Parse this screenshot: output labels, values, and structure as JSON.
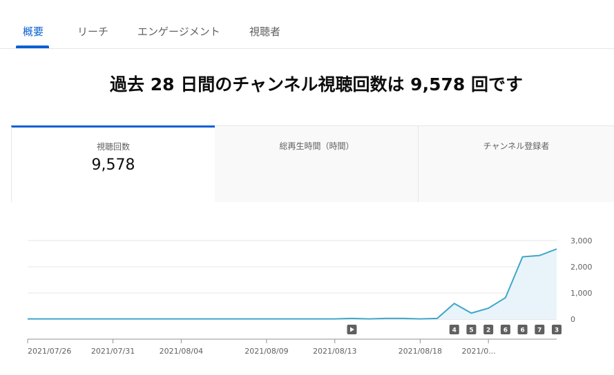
{
  "tabs": [
    {
      "label": "概要",
      "active": true
    },
    {
      "label": "リーチ",
      "active": false
    },
    {
      "label": "エンゲージメント",
      "active": false
    },
    {
      "label": "視聴者",
      "active": false
    }
  ],
  "headline": "過去 28 日間のチャンネル視聴回数は 9,578 回です",
  "cards": [
    {
      "label": "視聴回数",
      "value": "9,578"
    },
    {
      "label": "総再生時間（時間）",
      "value": ""
    },
    {
      "label": "チャンネル登録者",
      "value": ""
    }
  ],
  "colors": {
    "accent": "#065fd4",
    "line": "#3ea6c9",
    "fill": "#e8f4fa"
  },
  "chart_data": {
    "type": "area",
    "series": [
      {
        "values": [
          10,
          10,
          10,
          10,
          10,
          10,
          10,
          10,
          10,
          10,
          10,
          10,
          10,
          10,
          10,
          10,
          10,
          10,
          10,
          30,
          10,
          30,
          30,
          10,
          30,
          600,
          230,
          420,
          820,
          2380,
          2430,
          2680
        ]
      }
    ],
    "x_tick_labels": [
      "2021/07/26",
      "2021/07/31",
      "2021/08/04",
      "2021/08/09",
      "2021/08/13",
      "2021/08/18",
      "2021/0..."
    ],
    "y_tick_labels": [
      "0",
      "1,000",
      "2,000",
      "3,000"
    ],
    "ylim": [
      0,
      3000
    ],
    "grid": true,
    "markers": [
      {
        "label": "▶",
        "icon": "play-icon"
      },
      {
        "label": "4"
      },
      {
        "label": "5"
      },
      {
        "label": "2"
      },
      {
        "label": "6"
      },
      {
        "label": "6"
      },
      {
        "label": "7"
      },
      {
        "label": "3"
      }
    ]
  }
}
